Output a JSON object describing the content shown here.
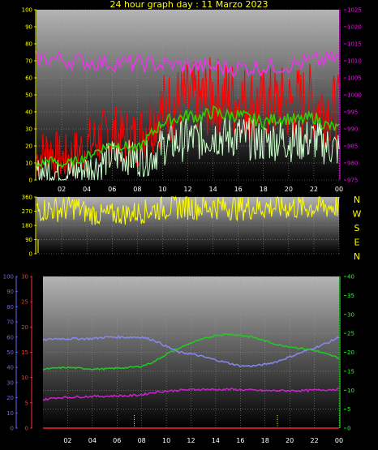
{
  "title": "24 hour graph day : 11 Marzo 2023",
  "x_ticks": [
    "02",
    "04",
    "06",
    "08",
    "10",
    "12",
    "14",
    "16",
    "18",
    "20",
    "22",
    "00"
  ],
  "compass": [
    "N",
    "W",
    "S",
    "E",
    "N"
  ],
  "colors": {
    "wind_gust": "#ff0000",
    "wind_avg": "#33cc00",
    "wind_min": "#ccffcc",
    "pressure": "#ee33ee",
    "direction": "#ffff00",
    "humidity": "#8888ee",
    "temperature": "#22cc22",
    "dewpoint": "#cc22cc",
    "rain": "#ff2222",
    "tick_yellow": "#ffff00",
    "tick_magenta": "#ff00ff",
    "tick_red": "#ff3030",
    "tick_blue": "#6666ff",
    "tick_green": "#22ff22"
  },
  "chart_data": [
    {
      "type": "line",
      "panel": "wind",
      "left_axis": {
        "ticks": [
          0,
          10,
          20,
          30,
          40,
          50,
          60,
          70,
          80,
          90,
          100
        ],
        "ylim": [
          0,
          100
        ]
      },
      "right_axis": {
        "ticks": [
          975,
          980,
          985,
          990,
          995,
          1000,
          1005,
          1010,
          1015,
          1020,
          1025
        ],
        "ylim": [
          975,
          1025
        ]
      },
      "xlim_hours": [
        0,
        24
      ],
      "series": [
        {
          "key": "wind_gust",
          "axis": "left",
          "x": [
            0,
            1,
            2,
            3,
            4,
            5,
            6,
            7,
            8,
            9,
            10,
            11,
            12,
            13,
            14,
            15,
            16,
            17,
            18,
            19,
            20,
            21,
            22,
            23,
            24
          ],
          "values": [
            13,
            18,
            12,
            15,
            20,
            24,
            27,
            25,
            24,
            35,
            42,
            44,
            46,
            46,
            49,
            48,
            47,
            45,
            43,
            45,
            44,
            45,
            46,
            42,
            40
          ]
        },
        {
          "key": "wind_avg",
          "axis": "left",
          "x": [
            0,
            1,
            2,
            3,
            4,
            5,
            6,
            7,
            8,
            9,
            10,
            11,
            12,
            13,
            14,
            15,
            16,
            17,
            18,
            19,
            20,
            21,
            22,
            23,
            24
          ],
          "values": [
            8,
            12,
            9,
            11,
            14,
            18,
            21,
            20,
            18,
            26,
            34,
            36,
            38,
            37,
            40,
            38,
            38,
            36,
            34,
            36,
            36,
            35,
            37,
            32,
            30
          ]
        },
        {
          "key": "wind_min",
          "axis": "left",
          "x": [
            0,
            1,
            2,
            3,
            4,
            5,
            6,
            7,
            8,
            9,
            10,
            11,
            12,
            13,
            14,
            15,
            16,
            17,
            18,
            19,
            20,
            21,
            22,
            23,
            24
          ],
          "values": [
            4,
            6,
            3,
            5,
            7,
            9,
            14,
            14,
            12,
            13,
            20,
            22,
            24,
            24,
            27,
            25,
            26,
            24,
            22,
            24,
            23,
            23,
            24,
            20,
            18
          ]
        },
        {
          "key": "pressure",
          "axis": "right",
          "x": [
            0,
            1,
            2,
            3,
            4,
            5,
            6,
            7,
            8,
            9,
            10,
            11,
            12,
            13,
            14,
            15,
            16,
            17,
            18,
            19,
            20,
            21,
            22,
            23,
            24
          ],
          "values": [
            1010.5,
            1010.6,
            1010.3,
            1010,
            1009.7,
            1009.5,
            1009.4,
            1009.3,
            1009.2,
            1009.1,
            1009,
            1008.8,
            1008.5,
            1008.3,
            1008.1,
            1008,
            1008,
            1008.1,
            1008.2,
            1008.5,
            1008.8,
            1009.3,
            1009.8,
            1010.3,
            1010.9
          ]
        }
      ]
    },
    {
      "type": "line",
      "panel": "direction",
      "left_axis": {
        "ticks": [
          0,
          90,
          180,
          270,
          360
        ],
        "ylim": [
          0,
          360
        ]
      },
      "xlim_hours": [
        0,
        24
      ],
      "series": [
        {
          "key": "direction",
          "axis": "left",
          "x": [
            0,
            1,
            2,
            3,
            4,
            5,
            6,
            7,
            8,
            9,
            10,
            11,
            12,
            13,
            14,
            15,
            16,
            17,
            18,
            19,
            20,
            21,
            22,
            23,
            24
          ],
          "values": [
            275,
            285,
            280,
            300,
            260,
            245,
            250,
            255,
            262,
            275,
            295,
            300,
            300,
            298,
            300,
            298,
            293,
            295,
            296,
            298,
            296,
            294,
            297,
            300,
            305
          ]
        }
      ]
    },
    {
      "type": "line",
      "panel": "atmo",
      "left_axis_humidity": {
        "ticks": [
          0,
          10,
          20,
          30,
          40,
          50,
          60,
          70,
          80,
          90,
          100
        ],
        "ylim": [
          0,
          100
        ]
      },
      "left_axis_dewpoint": {
        "ticks": [
          0,
          5,
          10,
          15,
          20,
          25,
          30
        ],
        "ylim": [
          0,
          30
        ]
      },
      "right_axis": {
        "ticks": [
          0,
          5,
          10,
          15,
          20,
          25,
          30,
          35,
          40
        ],
        "ylim": [
          0,
          40
        ]
      },
      "xlim_hours": [
        0,
        24
      ],
      "series": [
        {
          "key": "humidity",
          "axis": "humidity",
          "x": [
            0,
            1,
            2,
            3,
            4,
            5,
            6,
            7,
            8,
            9,
            10,
            11,
            12,
            13,
            14,
            15,
            16,
            17,
            18,
            19,
            20,
            21,
            22,
            23,
            24
          ],
          "values": [
            58,
            59,
            59,
            59,
            59,
            60,
            60,
            60,
            60,
            58,
            54,
            50,
            49,
            47,
            45,
            43,
            41,
            41,
            42,
            44,
            47,
            50,
            53,
            56,
            60
          ]
        },
        {
          "key": "temperature",
          "axis": "right",
          "x": [
            0,
            1,
            2,
            3,
            4,
            5,
            6,
            7,
            8,
            9,
            10,
            11,
            12,
            13,
            14,
            15,
            16,
            17,
            18,
            19,
            20,
            21,
            22,
            23,
            24
          ],
          "values": [
            15.5,
            15.8,
            16,
            15.8,
            15.6,
            15.6,
            15.8,
            16,
            16.3,
            17.5,
            19.5,
            21,
            22.5,
            23.5,
            24.5,
            24.8,
            24.5,
            24,
            23,
            22,
            21.5,
            21,
            20.5,
            19.5,
            18.5
          ]
        },
        {
          "key": "dewpoint",
          "axis": "dewpoint",
          "x": [
            0,
            1,
            2,
            3,
            4,
            5,
            6,
            7,
            8,
            9,
            10,
            11,
            12,
            13,
            14,
            15,
            16,
            17,
            18,
            19,
            20,
            21,
            22,
            23,
            24
          ],
          "values": [
            5.6,
            6,
            6.1,
            6.2,
            6.3,
            6.3,
            6.4,
            6.4,
            6.6,
            7.1,
            7.3,
            7.5,
            7.6,
            7.7,
            7.6,
            7.7,
            7.6,
            7.5,
            7.4,
            7.4,
            7.4,
            7.4,
            7.5,
            7.6,
            7.7
          ]
        },
        {
          "key": "rain",
          "axis": "dewpoint",
          "x": [
            0,
            24
          ],
          "values": [
            0,
            0
          ]
        }
      ]
    }
  ]
}
